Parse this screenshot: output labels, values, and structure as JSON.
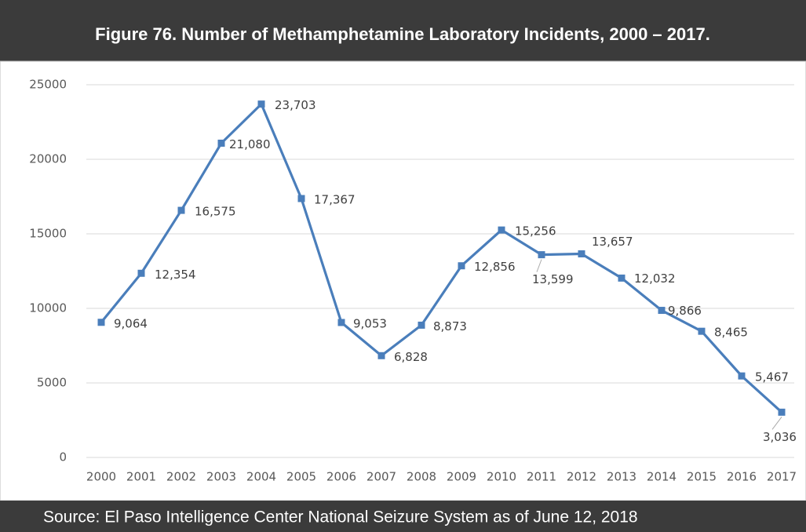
{
  "chart_data": {
    "type": "line",
    "title": "Figure 76. Number of Methamphetamine Laboratory Incidents, 2000 – 2017.",
    "source": "Source: El Paso Intelligence Center National Seizure System as of June 12, 2018",
    "categories": [
      "2000",
      "2001",
      "2002",
      "2003",
      "2004",
      "2005",
      "2006",
      "2007",
      "2008",
      "2009",
      "2010",
      "2011",
      "2012",
      "2013",
      "2014",
      "2015",
      "2016",
      "2017"
    ],
    "series": [
      {
        "name": "Methamphetamine Laboratory Incidents",
        "color": "#4a7ebb",
        "values": [
          9064,
          12354,
          16575,
          21080,
          23703,
          17367,
          9053,
          6828,
          8873,
          12856,
          15256,
          13599,
          13657,
          12032,
          9866,
          8465,
          5467,
          3036
        ],
        "value_labels": [
          "9,064",
          "12,354",
          "16,575",
          "21,080",
          "23,703",
          "17,367",
          "9,053",
          "6,828",
          "8,873",
          "12,856",
          "15,256",
          "13,599",
          "13,657",
          "12,032",
          "9,866",
          "8,465",
          "5,467",
          "3,036"
        ]
      }
    ],
    "ylim": [
      0,
      25000
    ],
    "yticks": [
      0,
      5000,
      10000,
      15000,
      20000,
      25000
    ],
    "grid": true
  }
}
